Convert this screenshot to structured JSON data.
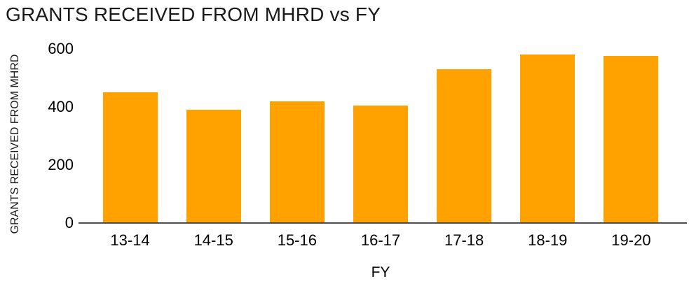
{
  "chart_data": {
    "type": "bar",
    "title": "GRANTS RECEIVED FROM MHRD vs FY",
    "xlabel": "FY",
    "ylabel": "GRANTS RECEIVED FROM MHRD",
    "categories": [
      "13-14",
      "14-15",
      "15-16",
      "16-17",
      "17-18",
      "18-19",
      "19-20"
    ],
    "values": [
      450,
      390,
      420,
      405,
      530,
      580,
      575
    ],
    "ylim": [
      0,
      600
    ],
    "yticks": [
      0,
      200,
      400,
      600
    ],
    "grid": false,
    "legend": false,
    "bar_color": "#FFA200",
    "axis_color": "#4D4D4D",
    "text_color": "#1A1A1A"
  }
}
